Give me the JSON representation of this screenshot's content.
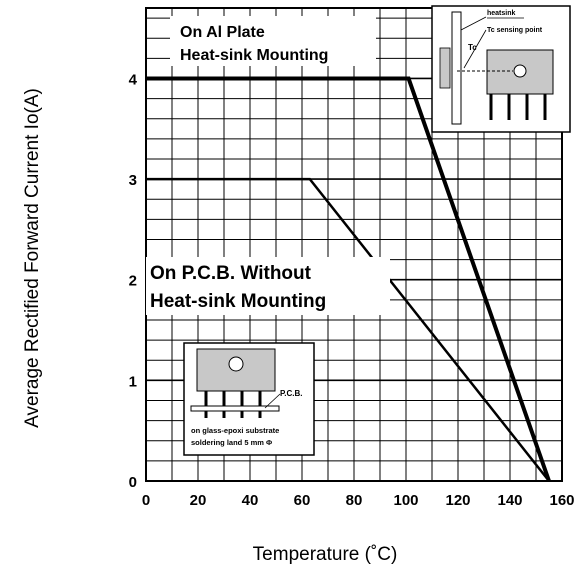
{
  "chart_data": {
    "type": "line",
    "title": "",
    "xlabel": "Temperature (˚C)",
    "ylabel": "Average Rectified Forward Current Io(A)",
    "xlim": [
      0,
      160
    ],
    "ylim": [
      0,
      4.7
    ],
    "xticks": [
      "0",
      "20",
      "40",
      "60",
      "80",
      "100",
      "120",
      "140",
      "160"
    ],
    "yticks": [
      "0",
      "1",
      "2",
      "3",
      "4"
    ],
    "grid": true,
    "series": [
      {
        "name": "On Al Plate Heat-sink Mounting",
        "x": [
          0,
          101,
          155
        ],
        "y": [
          4,
          4,
          0
        ]
      },
      {
        "name": "On P.C.B. Without Heat-sink Mounting",
        "x": [
          0,
          63,
          155
        ],
        "y": [
          3,
          3,
          0
        ]
      }
    ],
    "annotations": {
      "al_plate_line1": "On Al Plate",
      "al_plate_line2": "Heat-sink Mounting",
      "pcb_line1": "On P.C.B. Without",
      "pcb_line2": "Heat-sink Mounting",
      "inset_heatsink_label": "heatsink",
      "inset_tc_sensing_label": "Tc sensing point",
      "inset_tc_label": "Tc",
      "inset_pcb_label": "P.C.B.",
      "inset_substrate_line1": "on glass-epoxi substrate",
      "inset_substrate_line2": "soldering land 5 mm Φ"
    }
  }
}
